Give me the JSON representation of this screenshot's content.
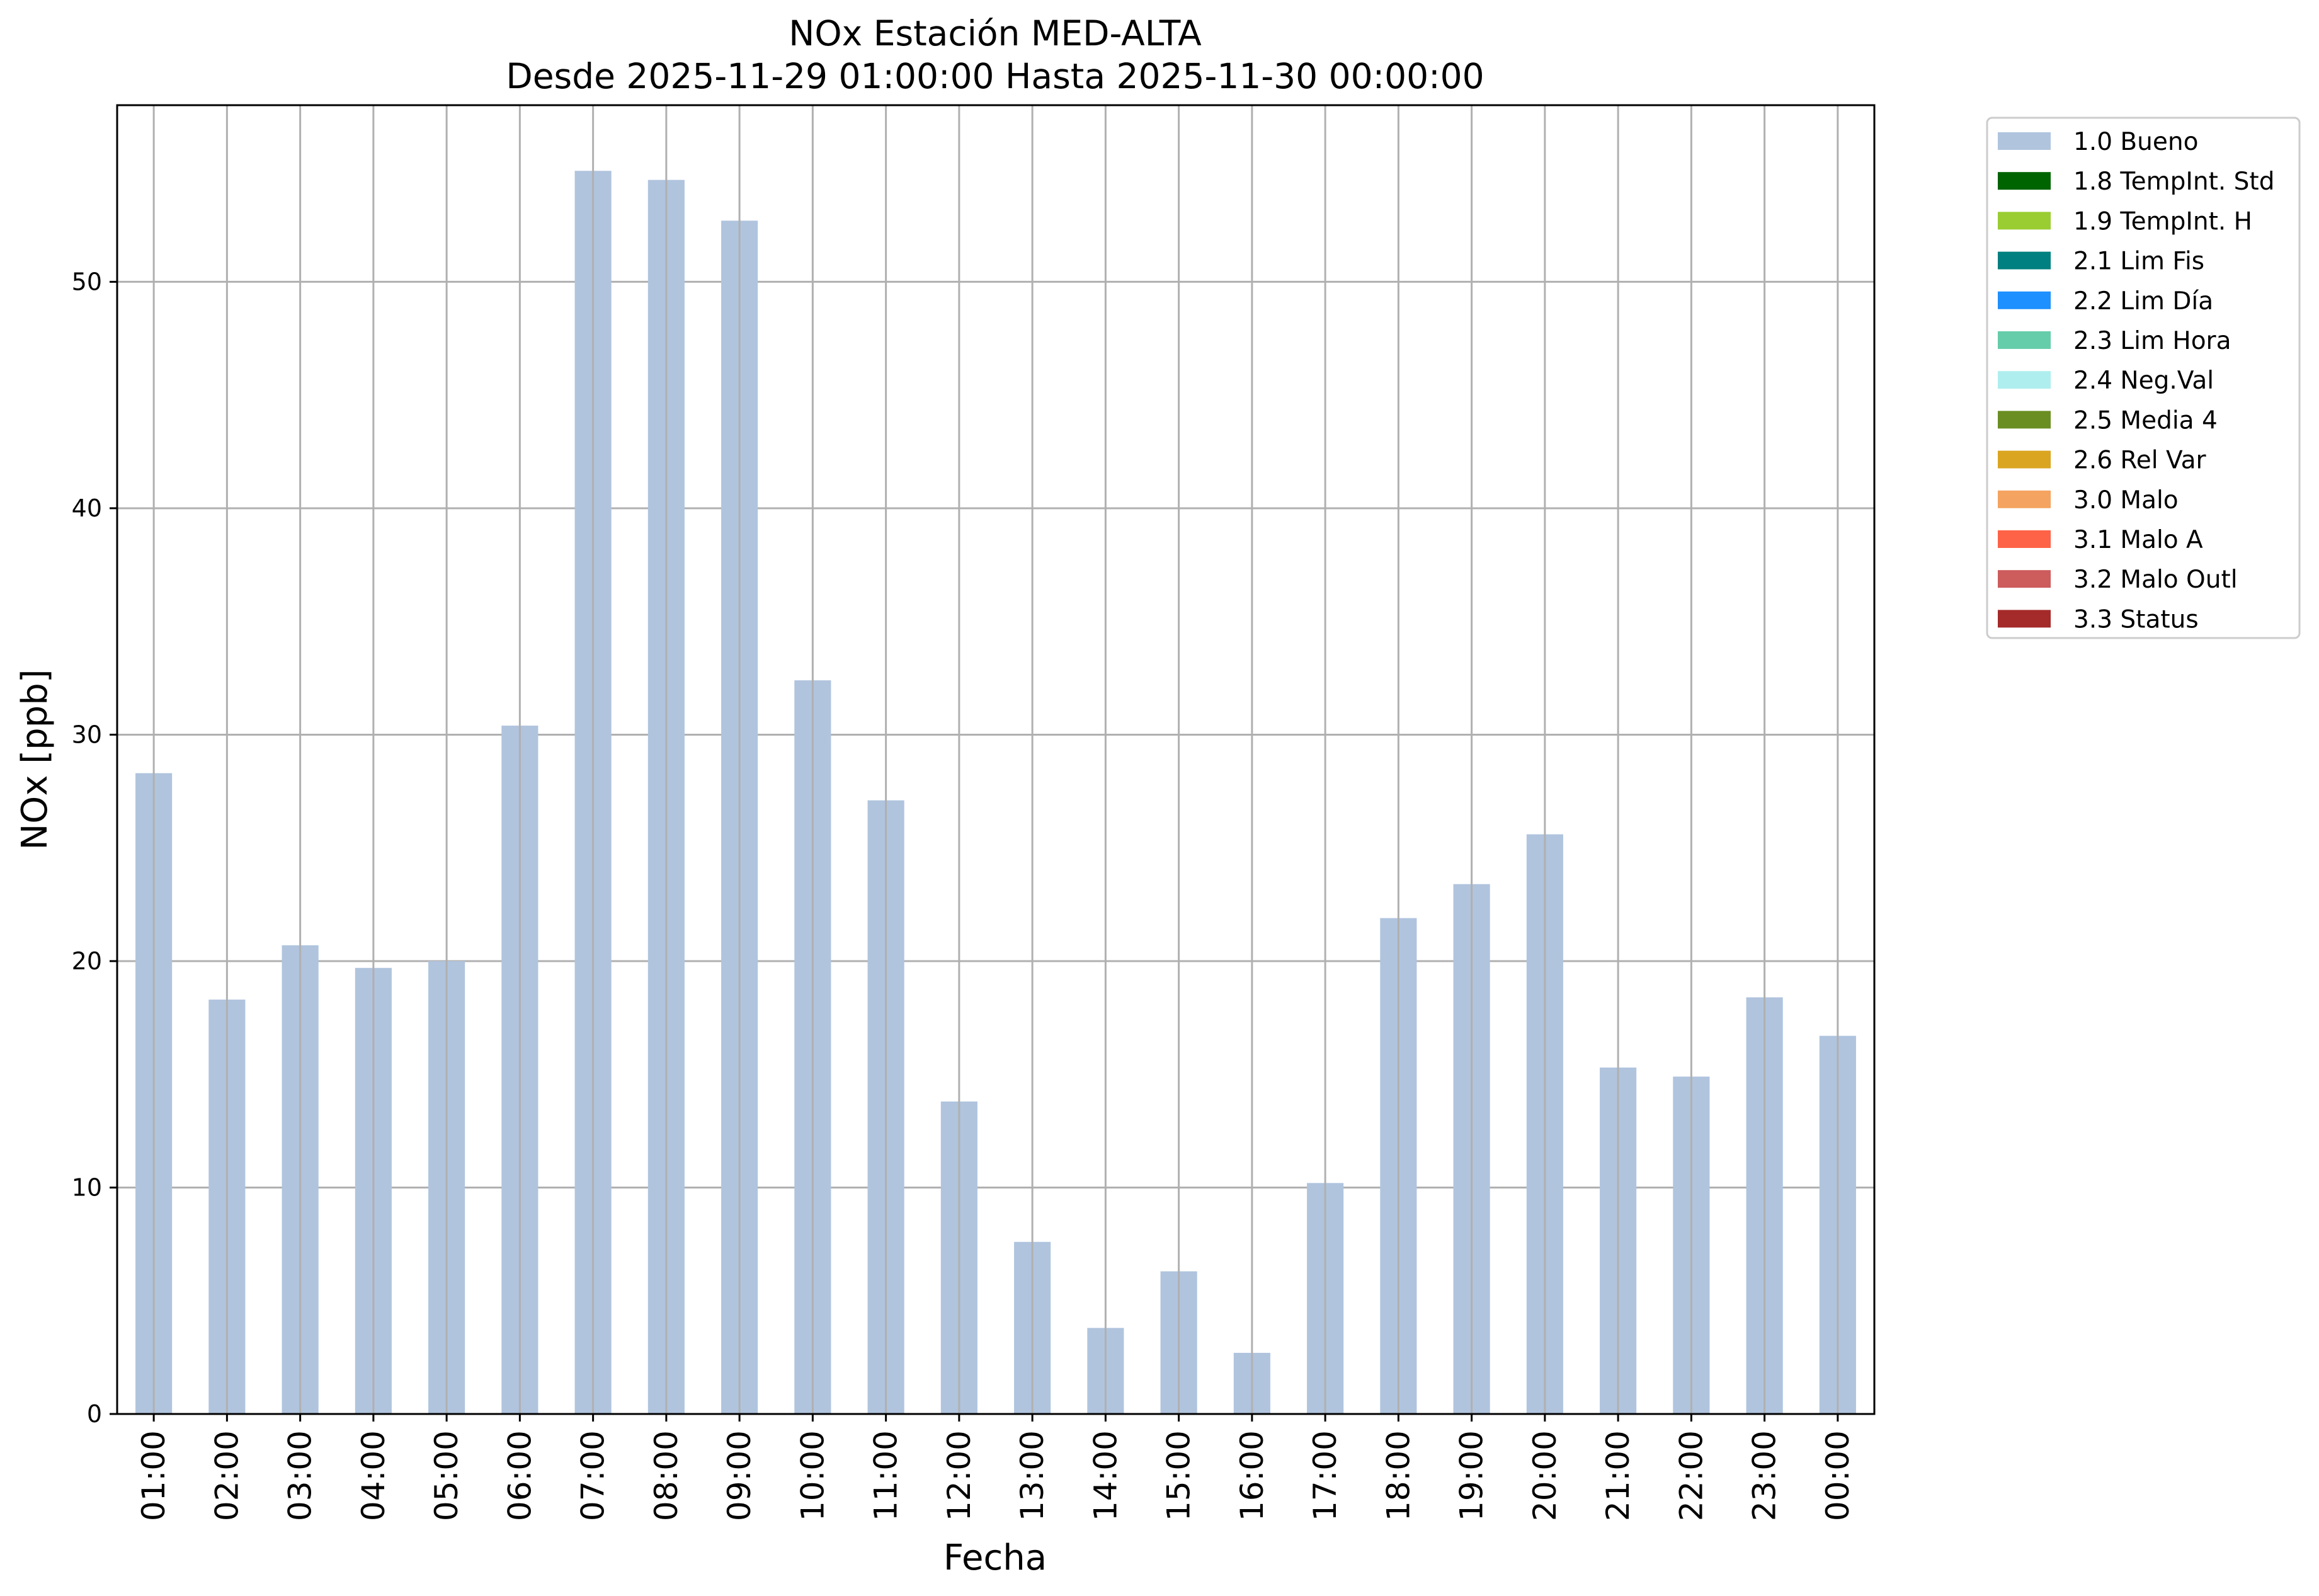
{
  "chart_data": {
    "type": "bar",
    "title": "NOx Estación MED-ALTA",
    "subtitle": "Desde 2025-11-29 01:00:00 Hasta 2025-11-30 00:00:00",
    "xlabel": "Fecha",
    "ylabel": "NOx [ppb]",
    "ylim": [
      0,
      57.8
    ],
    "yticks": [
      0,
      10,
      20,
      30,
      40,
      50
    ],
    "grid": true,
    "legend_position": "outside-top-right",
    "categories": [
      "01:00",
      "02:00",
      "03:00",
      "04:00",
      "05:00",
      "06:00",
      "07:00",
      "08:00",
      "09:00",
      "10:00",
      "11:00",
      "12:00",
      "13:00",
      "14:00",
      "15:00",
      "16:00",
      "17:00",
      "18:00",
      "19:00",
      "20:00",
      "21:00",
      "22:00",
      "23:00",
      "00:00"
    ],
    "series": [
      {
        "name": "1.0 Bueno",
        "color": "#b0c4de",
        "values": [
          28.3,
          18.3,
          20.7,
          19.7,
          20.0,
          30.4,
          54.9,
          54.5,
          52.7,
          32.4,
          27.1,
          13.8,
          7.6,
          3.8,
          6.3,
          2.7,
          10.2,
          21.9,
          23.4,
          25.6,
          15.3,
          14.9,
          18.4,
          16.7
        ]
      }
    ],
    "legend": [
      {
        "label": "1.0 Bueno",
        "color": "#b0c4de"
      },
      {
        "label": "1.8 TempInt. Std",
        "color": "#006400"
      },
      {
        "label": "1.9 TempInt. H",
        "color": "#9acd32"
      },
      {
        "label": "2.1 Lim Fis",
        "color": "#008080"
      },
      {
        "label": "2.2 Lim Día",
        "color": "#1e90ff"
      },
      {
        "label": "2.3 Lim Hora",
        "color": "#66cdaa"
      },
      {
        "label": "2.4 Neg.Val",
        "color": "#afeeee"
      },
      {
        "label": "2.5 Media 4",
        "color": "#6b8e23"
      },
      {
        "label": "2.6 Rel Var",
        "color": "#daa520"
      },
      {
        "label": "3.0 Malo",
        "color": "#f4a460"
      },
      {
        "label": "3.1 Malo A",
        "color": "#ff6347"
      },
      {
        "label": "3.2 Malo Outl",
        "color": "#cd5c5c"
      },
      {
        "label": "3.3 Status",
        "color": "#a52a2a"
      }
    ]
  }
}
